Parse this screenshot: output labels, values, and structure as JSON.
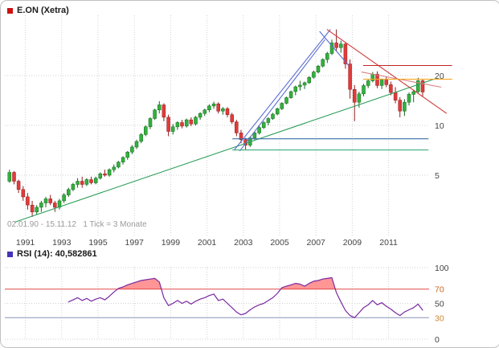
{
  "header": {
    "title": "E.ON (Xetra)",
    "icon_color": "#cc1111"
  },
  "main_footer": {
    "range_note": "02.01.90 - 15.11.12   1 Tick = 3 Monate"
  },
  "rsi_header": {
    "label": "RSI (14): 40,582861",
    "icon_color": "#4433bb"
  },
  "chart_data": [
    {
      "type": "candlestick",
      "title": "E.ON (Xetra)",
      "date_range": "02.01.90 - 15.11.12",
      "tick_note": "1 Tick = 3 Monate",
      "y_scale": "log",
      "ylim": [
        2.4,
        42
      ],
      "y_ticks": [
        20,
        10,
        5
      ],
      "x_tick_years": [
        1991,
        1993,
        1995,
        1997,
        1999,
        2001,
        2003,
        2005,
        2007,
        2009,
        2011
      ],
      "start_year": 1990,
      "months_per_candle": 3,
      "colors": {
        "up": "#33b13e",
        "up_border": "#14681d",
        "down": "#e23a3a",
        "down_border": "#8f1f1f"
      },
      "candles": [
        [
          4.6,
          5.4,
          4.5,
          5.2
        ],
        [
          5.2,
          5.3,
          4.4,
          4.6
        ],
        [
          4.6,
          4.7,
          3.9,
          4.1
        ],
        [
          4.1,
          4.3,
          3.5,
          3.7
        ],
        [
          3.7,
          3.9,
          3.1,
          3.3
        ],
        [
          3.3,
          3.5,
          2.8,
          3.0
        ],
        [
          3.0,
          3.3,
          2.9,
          3.2
        ],
        [
          3.2,
          3.5,
          3.0,
          3.4
        ],
        [
          3.4,
          3.7,
          3.2,
          3.6
        ],
        [
          3.6,
          3.8,
          3.3,
          3.4
        ],
        [
          3.4,
          3.5,
          3.0,
          3.2
        ],
        [
          3.2,
          3.6,
          3.1,
          3.5
        ],
        [
          3.5,
          3.9,
          3.4,
          3.8
        ],
        [
          3.8,
          4.2,
          3.7,
          4.1
        ],
        [
          4.1,
          4.5,
          4.0,
          4.4
        ],
        [
          4.4,
          4.8,
          4.2,
          4.6
        ],
        [
          4.6,
          4.9,
          4.2,
          4.4
        ],
        [
          4.4,
          4.8,
          4.3,
          4.7
        ],
        [
          4.7,
          4.9,
          4.4,
          4.5
        ],
        [
          4.5,
          4.9,
          4.4,
          4.8
        ],
        [
          4.8,
          5.2,
          4.7,
          5.1
        ],
        [
          5.1,
          5.4,
          4.9,
          5.0
        ],
        [
          5.0,
          5.5,
          4.9,
          5.4
        ],
        [
          5.4,
          5.8,
          5.2,
          5.6
        ],
        [
          5.6,
          6.1,
          5.5,
          6.0
        ],
        [
          6.0,
          6.5,
          5.8,
          6.4
        ],
        [
          6.4,
          7.0,
          6.2,
          6.9
        ],
        [
          6.9,
          7.6,
          6.7,
          7.4
        ],
        [
          7.4,
          8.2,
          7.2,
          8.0
        ],
        [
          8.0,
          9.0,
          7.8,
          8.8
        ],
        [
          8.8,
          10.0,
          8.6,
          9.8
        ],
        [
          9.8,
          11.2,
          9.5,
          11.0
        ],
        [
          11.0,
          12.6,
          10.8,
          12.4
        ],
        [
          12.4,
          14.0,
          11.8,
          13.3
        ],
        [
          13.3,
          13.6,
          10.6,
          11.2
        ],
        [
          11.2,
          11.6,
          8.6,
          9.2
        ],
        [
          9.2,
          10.2,
          8.8,
          9.8
        ],
        [
          9.8,
          10.6,
          9.4,
          10.4
        ],
        [
          10.4,
          10.8,
          9.6,
          9.9
        ],
        [
          9.9,
          11.0,
          9.7,
          10.8
        ],
        [
          10.8,
          11.2,
          9.9,
          10.2
        ],
        [
          10.2,
          11.4,
          10.0,
          11.2
        ],
        [
          11.2,
          12.0,
          10.8,
          11.8
        ],
        [
          11.8,
          12.6,
          11.4,
          12.4
        ],
        [
          12.4,
          13.4,
          12.0,
          13.1
        ],
        [
          13.1,
          13.9,
          12.6,
          13.5
        ],
        [
          13.5,
          13.8,
          11.8,
          12.2
        ],
        [
          12.2,
          12.9,
          11.6,
          12.6
        ],
        [
          12.6,
          12.9,
          11.2,
          11.6
        ],
        [
          11.6,
          11.9,
          10.2,
          10.5
        ],
        [
          10.5,
          10.8,
          8.6,
          9.0
        ],
        [
          9.0,
          9.4,
          7.8,
          8.2
        ],
        [
          8.2,
          8.4,
          7.1,
          7.6
        ],
        [
          7.6,
          8.6,
          7.4,
          8.4
        ],
        [
          8.4,
          9.2,
          8.2,
          9.0
        ],
        [
          9.0,
          9.9,
          8.8,
          9.7
        ],
        [
          9.7,
          10.6,
          9.5,
          10.4
        ],
        [
          10.4,
          11.2,
          10.0,
          11.0
        ],
        [
          11.0,
          11.9,
          10.8,
          11.7
        ],
        [
          11.7,
          12.8,
          11.5,
          12.6
        ],
        [
          12.6,
          13.8,
          12.4,
          13.6
        ],
        [
          13.6,
          14.9,
          13.4,
          14.7
        ],
        [
          14.7,
          16.2,
          14.5,
          16.0
        ],
        [
          16.0,
          17.4,
          15.2,
          17.1
        ],
        [
          17.1,
          18.6,
          16.2,
          17.5
        ],
        [
          17.5,
          18.4,
          16.6,
          18.1
        ],
        [
          18.1,
          19.8,
          17.8,
          19.5
        ],
        [
          19.5,
          21.4,
          19.2,
          21.0
        ],
        [
          21.0,
          23.2,
          20.6,
          22.8
        ],
        [
          22.8,
          25.4,
          22.4,
          25.0
        ],
        [
          25.0,
          27.8,
          23.8,
          27.2
        ],
        [
          27.2,
          33.0,
          26.6,
          31.5
        ],
        [
          31.5,
          38.0,
          28.0,
          29.5
        ],
        [
          29.5,
          32.5,
          27.5,
          31.0
        ],
        [
          31.0,
          31.5,
          22.0,
          23.5
        ],
        [
          23.5,
          25.0,
          14.5,
          16.5
        ],
        [
          16.5,
          17.5,
          10.6,
          13.8
        ],
        [
          13.8,
          16.0,
          12.8,
          15.5
        ],
        [
          15.5,
          17.8,
          15.0,
          17.4
        ],
        [
          17.4,
          19.0,
          16.8,
          18.6
        ],
        [
          18.6,
          21.0,
          18.2,
          20.4
        ],
        [
          20.4,
          21.2,
          16.8,
          17.4
        ],
        [
          17.4,
          19.2,
          16.6,
          18.8
        ],
        [
          18.8,
          19.6,
          17.0,
          17.6
        ],
        [
          17.6,
          18.4,
          15.2,
          15.8
        ],
        [
          15.8,
          17.0,
          13.6,
          14.2
        ],
        [
          14.2,
          14.8,
          11.2,
          12.2
        ],
        [
          12.2,
          14.4,
          11.4,
          13.8
        ],
        [
          13.8,
          15.8,
          13.2,
          15.4
        ],
        [
          15.4,
          16.4,
          13.8,
          16.0
        ],
        [
          16.0,
          19.4,
          15.6,
          18.6
        ],
        [
          18.6,
          19.0,
          14.9,
          15.9
        ]
      ],
      "overlays": [
        {
          "x1": 1990.4,
          "p1": 2.6,
          "x2": 2013.6,
          "p2": 19.2,
          "color": "#2e9e5b"
        },
        {
          "x1": 2002.5,
          "p1": 7.1,
          "x2": 2007.8,
          "p2": 38.0,
          "color": "#5b6ed0"
        },
        {
          "x1": 2002.8,
          "p1": 7.0,
          "x2": 2007.5,
          "p2": 33.0,
          "color": "#5b6ed0"
        },
        {
          "x1": 2007.2,
          "p1": 37.0,
          "x2": 2008.8,
          "p2": 23.0,
          "color": "#5b6ed0"
        },
        {
          "x1": 2007.6,
          "p1": 38.0,
          "x2": 2014.2,
          "p2": 11.8,
          "color": "#d23b3b"
        },
        {
          "x1": 2009.5,
          "p1": 21.0,
          "x2": 2013.9,
          "p2": 17.0,
          "color": "#d98080"
        },
        {
          "x1": 2009.6,
          "p1": 23.0,
          "x2": 2014.5,
          "p2": 23.0,
          "color": "#c22525"
        },
        {
          "x1": 2009.6,
          "p1": 19.0,
          "x2": 2014.5,
          "p2": 19.0,
          "color": "#f5a623"
        },
        {
          "x1": 2002.4,
          "p1": 8.3,
          "x2": 2013.2,
          "p2": 8.3,
          "color": "#3a6ea5"
        },
        {
          "x1": 2002.4,
          "p1": 7.1,
          "x2": 2013.2,
          "p2": 7.1,
          "color": "#3fae7a"
        }
      ]
    },
    {
      "type": "line",
      "name": "RSI (14)",
      "current_value": 40.582861,
      "current_value_display": "40,582861",
      "ylim": [
        0,
        100
      ],
      "y_ticks": [
        {
          "v": 100,
          "color": "#444444"
        },
        {
          "v": 70,
          "color": "#cc6622"
        },
        {
          "v": 50,
          "color": "#444444"
        },
        {
          "v": 30,
          "color": "#cc8833"
        },
        {
          "v": 0,
          "color": "#444444"
        }
      ],
      "levels": [
        {
          "v": 70,
          "color": "#e04848"
        },
        {
          "v": 30,
          "color": "#8894b8"
        }
      ],
      "line_color": "#7a29a3",
      "fill_above_level": 70,
      "fill_color": "#ff8282",
      "values": [
        null,
        null,
        null,
        null,
        null,
        null,
        null,
        null,
        null,
        null,
        null,
        null,
        null,
        52,
        55,
        58,
        54,
        57,
        53,
        56,
        58,
        55,
        60,
        66,
        71,
        73,
        76,
        78,
        80,
        82,
        83,
        84,
        85,
        80,
        58,
        47,
        50,
        54,
        50,
        53,
        49,
        53,
        56,
        58,
        61,
        63,
        54,
        56,
        50,
        44,
        38,
        34,
        36,
        41,
        45,
        48,
        50,
        54,
        58,
        64,
        72,
        74,
        76,
        78,
        77,
        74,
        78,
        81,
        82,
        84,
        85,
        86,
        65,
        52,
        40,
        33,
        30,
        37,
        44,
        48,
        54,
        48,
        51,
        46,
        42,
        37,
        33,
        38,
        41,
        44,
        49,
        40.582861
      ]
    }
  ]
}
